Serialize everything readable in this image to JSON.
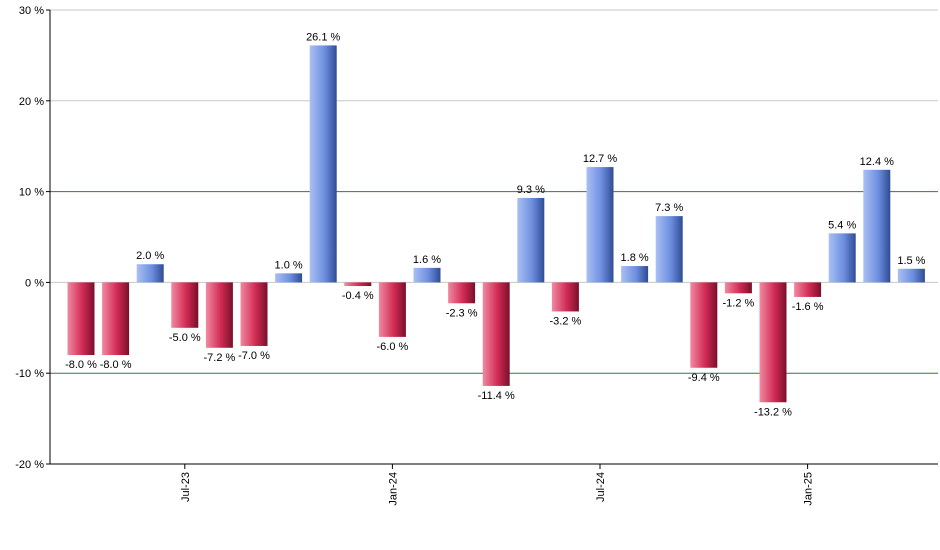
{
  "chart_data": {
    "type": "bar",
    "ylim": [
      -20,
      30
    ],
    "y_ticks": [
      {
        "value": -20,
        "label": "-20 %"
      },
      {
        "value": -10,
        "label": "-10 %"
      },
      {
        "value": 0,
        "label": "0 %"
      },
      {
        "value": 10,
        "label": "10 %"
      },
      {
        "value": 20,
        "label": "20 %"
      },
      {
        "value": 30,
        "label": "30 %"
      }
    ],
    "x_ticks": [
      {
        "index": 3,
        "label": "Jul-23"
      },
      {
        "index": 9,
        "label": "Jan-24"
      },
      {
        "index": 15,
        "label": "Jul-24"
      },
      {
        "index": 21,
        "label": "Jan-25"
      }
    ],
    "values": [
      -8.0,
      -8.0,
      2.0,
      -5.0,
      -7.2,
      -7.0,
      1.0,
      26.1,
      -0.4,
      -6.0,
      1.6,
      -2.3,
      -11.4,
      9.3,
      -3.2,
      12.7,
      1.8,
      7.3,
      -9.4,
      -1.2,
      -13.2,
      -1.6,
      5.4,
      12.4,
      1.5
    ],
    "value_labels": [
      "-8.0 %",
      "-8.0 %",
      "2.0 %",
      "-5.0 %",
      "-7.2 %",
      "-7.0 %",
      "1.0 %",
      "26.1 %",
      "-0.4 %",
      "-6.0 %",
      "1.6 %",
      "-2.3 %",
      "-11.4 %",
      "9.3 %",
      "-3.2 %",
      "12.7 %",
      "1.8 %",
      "7.3 %",
      "-9.4 %",
      "-1.2 %",
      "-13.2 %",
      "-1.6 %",
      "5.4 %",
      "12.4 %",
      "1.5 %"
    ],
    "reference_lines": [
      10,
      -10
    ],
    "grid": true,
    "colors": {
      "positive": "#5b7fd6",
      "negative": "#c8234a",
      "reference_line": "#2e7d2e",
      "grid": "#c8c8c8",
      "axis": "#000000"
    }
  }
}
